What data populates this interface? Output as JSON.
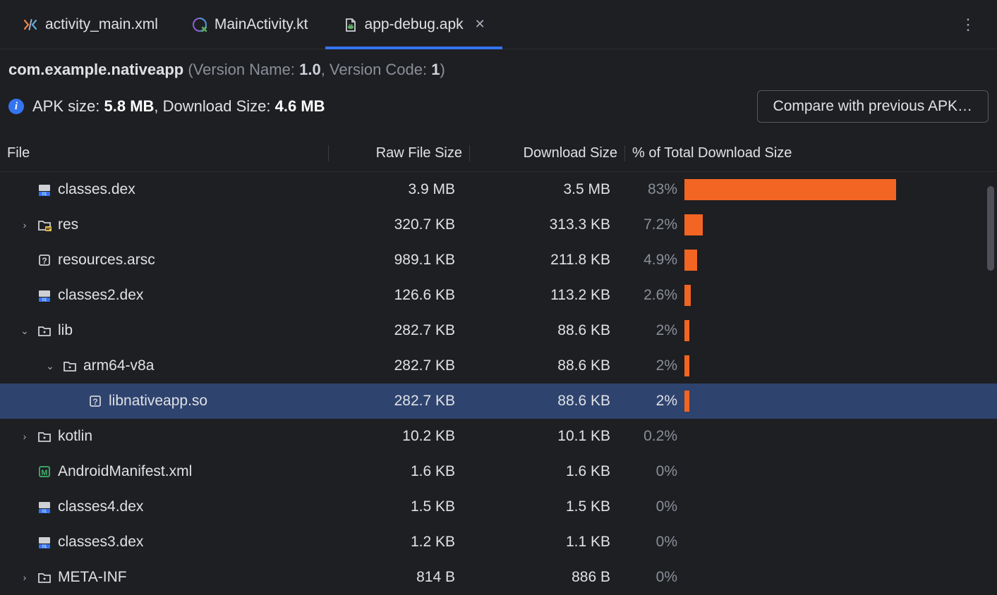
{
  "tabs": [
    {
      "label": "activity_main.xml",
      "icon": "xml",
      "active": false,
      "closeable": false
    },
    {
      "label": "MainActivity.kt",
      "icon": "kotlin-main",
      "active": false,
      "closeable": false
    },
    {
      "label": "app-debug.apk",
      "icon": "apk",
      "active": true,
      "closeable": true
    }
  ],
  "package": {
    "name": "com.example.nativeapp",
    "version_name_label": "Version Name:",
    "version_name": "1.0",
    "version_code_label": "Version Code:",
    "version_code": "1"
  },
  "sizes": {
    "apk_label": "APK size:",
    "apk_value": "5.8 MB",
    "download_label": "Download Size:",
    "download_value": "4.6 MB"
  },
  "compare_button": "Compare with previous APK…",
  "columns": {
    "file": "File",
    "raw": "Raw File Size",
    "download": "Download Size",
    "pct": "% of Total Download Size"
  },
  "bar_color": "#f26522",
  "selected_bg": "#2e436e",
  "rows": [
    {
      "indent": 0,
      "expander": "none",
      "icon": "dex",
      "name": "classes.dex",
      "raw": "3.9 MB",
      "download": "3.5 MB",
      "pct": "83%",
      "bar": 83,
      "selected": false
    },
    {
      "indent": 0,
      "expander": "closed",
      "icon": "folder",
      "name": "res",
      "raw": "320.7 KB",
      "download": "313.3 KB",
      "pct": "7.2%",
      "bar": 7.2,
      "selected": false
    },
    {
      "indent": 0,
      "expander": "none",
      "icon": "unknown",
      "name": "resources.arsc",
      "raw": "989.1 KB",
      "download": "211.8 KB",
      "pct": "4.9%",
      "bar": 4.9,
      "selected": false
    },
    {
      "indent": 0,
      "expander": "none",
      "icon": "dex",
      "name": "classes2.dex",
      "raw": "126.6 KB",
      "download": "113.2 KB",
      "pct": "2.6%",
      "bar": 2.6,
      "selected": false
    },
    {
      "indent": 0,
      "expander": "open",
      "icon": "folder-dot",
      "name": "lib",
      "raw": "282.7 KB",
      "download": "88.6 KB",
      "pct": "2%",
      "bar": 2,
      "selected": false
    },
    {
      "indent": 1,
      "expander": "open",
      "icon": "folder-dot",
      "name": "arm64-v8a",
      "raw": "282.7 KB",
      "download": "88.6 KB",
      "pct": "2%",
      "bar": 2,
      "selected": false
    },
    {
      "indent": 2,
      "expander": "none",
      "icon": "unknown",
      "name": "libnativeapp.so",
      "raw": "282.7 KB",
      "download": "88.6 KB",
      "pct": "2%",
      "bar": 2,
      "selected": true
    },
    {
      "indent": 0,
      "expander": "closed",
      "icon": "folder-dot",
      "name": "kotlin",
      "raw": "10.2 KB",
      "download": "10.1 KB",
      "pct": "0.2%",
      "bar": 0,
      "selected": false
    },
    {
      "indent": 0,
      "expander": "none",
      "icon": "manifest",
      "name": "AndroidManifest.xml",
      "raw": "1.6 KB",
      "download": "1.6 KB",
      "pct": "0%",
      "bar": 0,
      "selected": false
    },
    {
      "indent": 0,
      "expander": "none",
      "icon": "dex",
      "name": "classes4.dex",
      "raw": "1.5 KB",
      "download": "1.5 KB",
      "pct": "0%",
      "bar": 0,
      "selected": false
    },
    {
      "indent": 0,
      "expander": "none",
      "icon": "dex",
      "name": "classes3.dex",
      "raw": "1.2 KB",
      "download": "1.1 KB",
      "pct": "0%",
      "bar": 0,
      "selected": false
    },
    {
      "indent": 0,
      "expander": "closed",
      "icon": "folder-dot",
      "name": "META-INF",
      "raw": "814 B",
      "download": "886 B",
      "pct": "0%",
      "bar": 0,
      "selected": false
    }
  ]
}
